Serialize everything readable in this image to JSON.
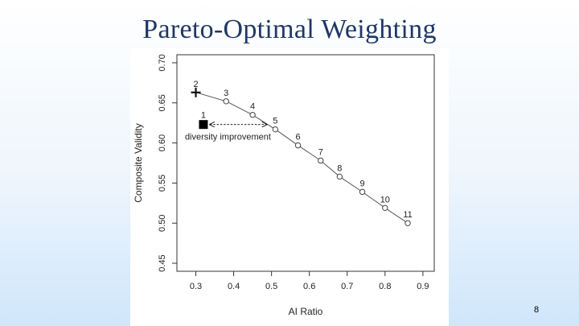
{
  "slide": {
    "title": "Pareto-Optimal Weighting",
    "page_number": "8"
  },
  "chart_data": {
    "type": "scatter",
    "xlabel": "AI Ratio",
    "ylabel": "Composite Validity",
    "xlim": [
      0.25,
      0.93
    ],
    "ylim": [
      0.44,
      0.71
    ],
    "x_ticks": [
      "0.3",
      "0.4",
      "0.5",
      "0.6",
      "0.7",
      "0.8",
      "0.9"
    ],
    "y_ticks": [
      "0.45",
      "0.50",
      "0.55",
      "0.60",
      "0.65",
      "0.70"
    ],
    "grid": false,
    "series": [
      {
        "points": [
          {
            "label": "2",
            "x": 0.3,
            "y": 0.663,
            "marker": "cross"
          },
          {
            "label": "3",
            "x": 0.38,
            "y": 0.652,
            "marker": "circle"
          },
          {
            "label": "4",
            "x": 0.45,
            "y": 0.635,
            "marker": "circle"
          },
          {
            "label": "5",
            "x": 0.51,
            "y": 0.617,
            "marker": "circle"
          },
          {
            "label": "6",
            "x": 0.57,
            "y": 0.597,
            "marker": "circle"
          },
          {
            "label": "7",
            "x": 0.63,
            "y": 0.578,
            "marker": "circle"
          },
          {
            "label": "8",
            "x": 0.68,
            "y": 0.558,
            "marker": "circle"
          },
          {
            "label": "9",
            "x": 0.74,
            "y": 0.539,
            "marker": "circle"
          },
          {
            "label": "10",
            "x": 0.8,
            "y": 0.519,
            "marker": "circle"
          },
          {
            "label": "11",
            "x": 0.86,
            "y": 0.5,
            "marker": "circle"
          }
        ]
      }
    ],
    "reference_point": {
      "label": "1",
      "x": 0.32,
      "y": 0.623,
      "marker": "square"
    },
    "annotation": {
      "text": "diversity improvement",
      "arrow_from": {
        "x": 0.32,
        "y": 0.623
      },
      "arrow_to": {
        "x": 0.5,
        "y": 0.623
      },
      "style": "dashed double-headed arrow"
    }
  }
}
